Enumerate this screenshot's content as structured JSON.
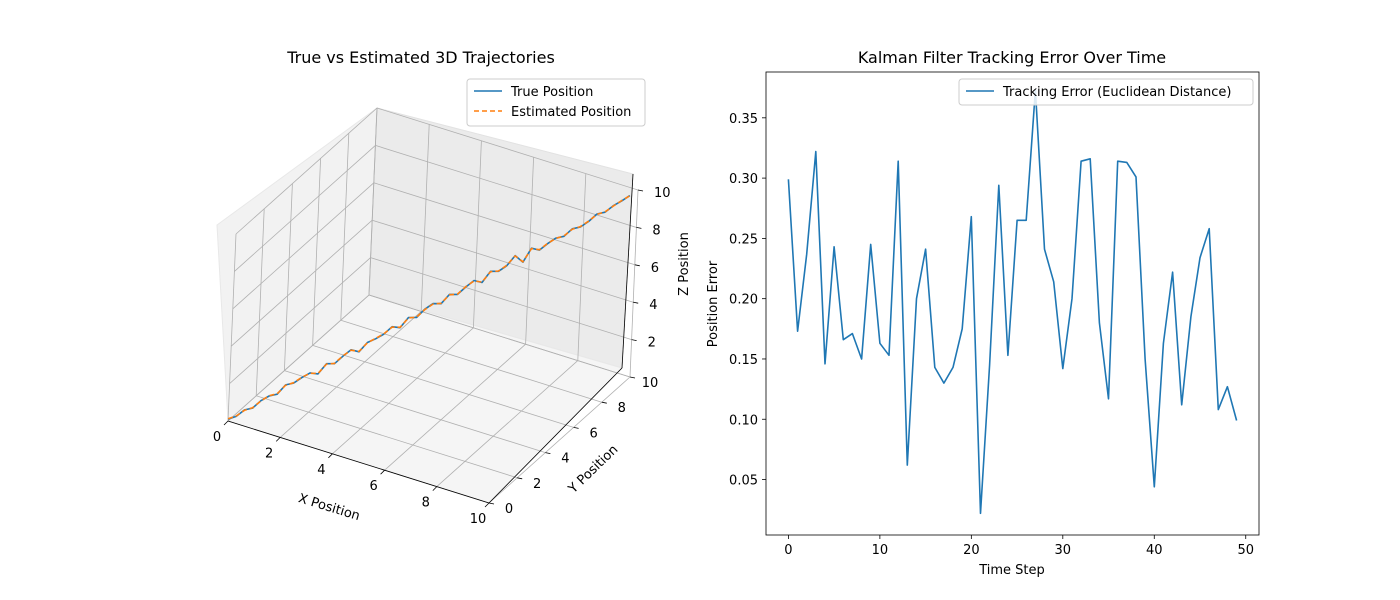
{
  "chart_data": [
    {
      "type": "line3d",
      "title": "True vs Estimated 3D Trajectories",
      "xlabel": "X Position",
      "ylabel": "Y Position",
      "zlabel": "Z Position",
      "xlim": [
        0,
        10
      ],
      "ylim": [
        0,
        10
      ],
      "zlim": [
        0,
        10
      ],
      "x_ticks": [
        "0",
        "2",
        "4",
        "6",
        "8",
        "10"
      ],
      "y_ticks": [
        "0",
        "2",
        "4",
        "6",
        "8",
        "10"
      ],
      "z_ticks": [
        "2",
        "4",
        "6",
        "8",
        "10"
      ],
      "grid": true,
      "legend_position": "top-right",
      "series": [
        {
          "name": "True Position",
          "color": "#1f77b4",
          "linestyle": "solid",
          "x": [
            0.0,
            0.2,
            0.4,
            0.6,
            0.8,
            1.0,
            1.2,
            1.4,
            1.6,
            1.8,
            2.0,
            2.2,
            2.4,
            2.6,
            2.8,
            3.0,
            3.2,
            3.4,
            3.6,
            3.8,
            4.0,
            4.2,
            4.4,
            4.6,
            4.8,
            5.0,
            5.2,
            5.4,
            5.6,
            5.8,
            6.0,
            6.2,
            6.4,
            6.6,
            6.8,
            7.0,
            7.2,
            7.4,
            7.6,
            7.8,
            8.0,
            8.2,
            8.4,
            8.6,
            8.8,
            9.0,
            9.2,
            9.4,
            9.6,
            9.8
          ],
          "y": [
            0.0,
            0.2,
            0.4,
            0.6,
            0.8,
            1.0,
            1.2,
            1.4,
            1.6,
            1.8,
            2.0,
            2.2,
            2.4,
            2.6,
            2.8,
            3.0,
            3.2,
            3.4,
            3.6,
            3.8,
            4.0,
            4.2,
            4.4,
            4.6,
            4.8,
            5.0,
            5.2,
            5.4,
            5.6,
            5.8,
            6.0,
            6.2,
            6.4,
            6.6,
            6.8,
            7.0,
            7.2,
            7.4,
            7.6,
            7.8,
            8.0,
            8.2,
            8.4,
            8.6,
            8.8,
            9.0,
            9.2,
            9.4,
            9.6,
            9.8
          ],
          "z": [
            0.1,
            0.2,
            0.5,
            0.55,
            0.9,
            1.1,
            1.15,
            1.6,
            1.65,
            1.9,
            2.1,
            2.0,
            2.5,
            2.45,
            2.8,
            3.1,
            2.95,
            3.4,
            3.55,
            3.75,
            4.1,
            4.0,
            4.5,
            4.45,
            4.85,
            5.1,
            5.05,
            5.5,
            5.45,
            5.8,
            6.1,
            5.95,
            6.5,
            6.45,
            6.7,
            7.2,
            6.8,
            7.5,
            7.35,
            7.65,
            7.9,
            7.95,
            8.3,
            8.35,
            8.6,
            8.95,
            9.0,
            9.3,
            9.5,
            9.75
          ]
        },
        {
          "name": "Estimated Position",
          "color": "#ff7f0e",
          "linestyle": "dashed",
          "x": [
            0.0,
            0.2,
            0.4,
            0.6,
            0.8,
            1.0,
            1.2,
            1.4,
            1.6,
            1.8,
            2.0,
            2.2,
            2.4,
            2.6,
            2.8,
            3.0,
            3.2,
            3.4,
            3.6,
            3.8,
            4.0,
            4.2,
            4.4,
            4.6,
            4.8,
            5.0,
            5.2,
            5.4,
            5.6,
            5.8,
            6.0,
            6.2,
            6.4,
            6.6,
            6.8,
            7.0,
            7.2,
            7.4,
            7.6,
            7.8,
            8.0,
            8.2,
            8.4,
            8.6,
            8.8,
            9.0,
            9.2,
            9.4,
            9.6,
            9.8
          ],
          "y": [
            0.0,
            0.2,
            0.4,
            0.6,
            0.8,
            1.0,
            1.2,
            1.4,
            1.6,
            1.8,
            2.0,
            2.2,
            2.4,
            2.6,
            2.8,
            3.0,
            3.2,
            3.4,
            3.6,
            3.8,
            4.0,
            4.2,
            4.4,
            4.6,
            4.8,
            5.0,
            5.2,
            5.4,
            5.6,
            5.8,
            6.0,
            6.2,
            6.4,
            6.6,
            6.8,
            7.0,
            7.2,
            7.4,
            7.6,
            7.8,
            8.0,
            8.2,
            8.4,
            8.6,
            8.8,
            9.0,
            9.2,
            9.4,
            9.6,
            9.8
          ],
          "z": [
            0.12,
            0.22,
            0.48,
            0.57,
            0.88,
            1.12,
            1.17,
            1.58,
            1.67,
            1.92,
            2.08,
            2.03,
            2.48,
            2.47,
            2.82,
            3.08,
            2.97,
            3.38,
            3.57,
            3.77,
            4.08,
            4.02,
            4.48,
            4.47,
            4.83,
            5.08,
            5.07,
            5.48,
            5.47,
            5.82,
            6.08,
            5.97,
            6.48,
            6.47,
            6.72,
            7.18,
            6.82,
            7.48,
            7.37,
            7.67,
            7.88,
            7.97,
            8.28,
            8.37,
            8.62,
            8.93,
            9.02,
            9.28,
            9.52,
            9.73
          ]
        }
      ]
    },
    {
      "type": "line",
      "title": "Kalman Filter Tracking Error Over Time",
      "xlabel": "Time Step",
      "ylabel": "Position Error",
      "xlim": [
        -2.45,
        51.45
      ],
      "ylim": [
        0.004,
        0.388
      ],
      "x_ticks": [
        "0",
        "10",
        "20",
        "30",
        "40",
        "50"
      ],
      "y_ticks": [
        "0.05",
        "0.10",
        "0.15",
        "0.20",
        "0.25",
        "0.30",
        "0.35"
      ],
      "legend_position": "top-right",
      "series": [
        {
          "name": "Tracking Error (Euclidean Distance)",
          "color": "#1f77b4",
          "x": [
            0,
            1,
            2,
            3,
            4,
            5,
            6,
            7,
            8,
            9,
            10,
            11,
            12,
            13,
            14,
            15,
            16,
            17,
            18,
            19,
            20,
            21,
            22,
            23,
            24,
            25,
            26,
            27,
            28,
            29,
            30,
            31,
            32,
            33,
            34,
            35,
            36,
            37,
            38,
            39,
            40,
            41,
            42,
            43,
            44,
            45,
            46,
            47,
            48,
            49
          ],
          "values": [
            0.299,
            0.173,
            0.237,
            0.322,
            0.146,
            0.243,
            0.166,
            0.171,
            0.15,
            0.245,
            0.163,
            0.153,
            0.314,
            0.062,
            0.2,
            0.241,
            0.143,
            0.13,
            0.143,
            0.175,
            0.268,
            0.022,
            0.145,
            0.294,
            0.153,
            0.265,
            0.265,
            0.373,
            0.241,
            0.214,
            0.142,
            0.2,
            0.314,
            0.316,
            0.18,
            0.117,
            0.314,
            0.313,
            0.301,
            0.15,
            0.044,
            0.163,
            0.222,
            0.112,
            0.185,
            0.234,
            0.258,
            0.108,
            0.127,
            0.099
          ]
        }
      ]
    }
  ]
}
